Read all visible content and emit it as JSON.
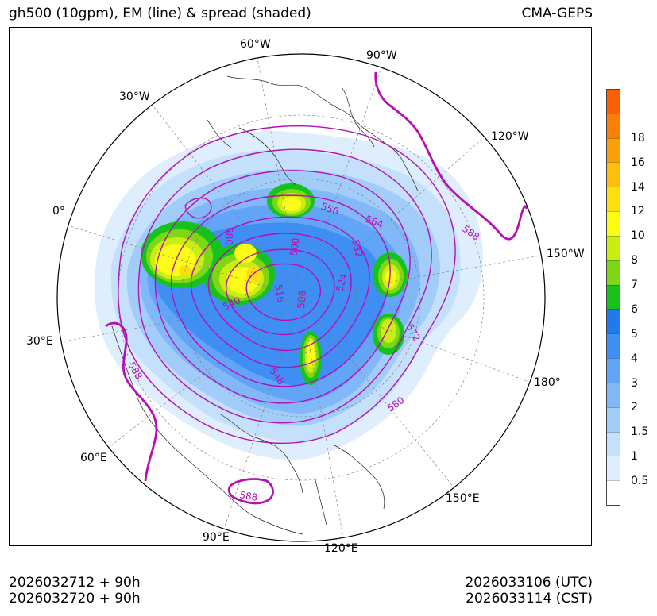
{
  "title": {
    "left": "gh500 (10gpm), EM (line) & spread (shaded)",
    "right": "CMA-GEPS"
  },
  "map": {
    "projection": "north-polar-stereographic",
    "longitude_labels": [
      "60°W",
      "90°W",
      "30°W",
      "120°W",
      "0°",
      "150°W",
      "30°E",
      "180°",
      "60°E",
      "150°E",
      "90°E",
      "120°E"
    ],
    "contour_labels": [
      "556",
      "564",
      "588",
      "580",
      "500",
      "532",
      "516",
      "508",
      "524",
      "540",
      "572",
      "548",
      "580",
      "588",
      "588"
    ],
    "colors": {
      "contour": "#b510b5",
      "graticule": "#777777",
      "coast": "#222222"
    }
  },
  "colorbar": {
    "ticks": [
      "0.5",
      "1",
      "1.5",
      "2",
      "3",
      "4",
      "5",
      "6",
      "7",
      "8",
      "10",
      "12",
      "14",
      "16",
      "18"
    ],
    "colors": [
      "#ffffff",
      "#deeefc",
      "#c4e0fb",
      "#a3cdf9",
      "#82b8f7",
      "#62a4f5",
      "#3f8ef3",
      "#1f7aee",
      "#16c31a",
      "#7fd614",
      "#c8ee12",
      "#fcfc14",
      "#fcdf11",
      "#fcbf0c",
      "#fc9f08",
      "#fb7f05",
      "#fa5f02"
    ]
  },
  "footer": {
    "init_utc": "2026032712 + 90h",
    "init_cst": "2026032720 + 90h",
    "valid_utc": "2026033106 (UTC)",
    "valid_cst": "2026033114 (CST)"
  }
}
